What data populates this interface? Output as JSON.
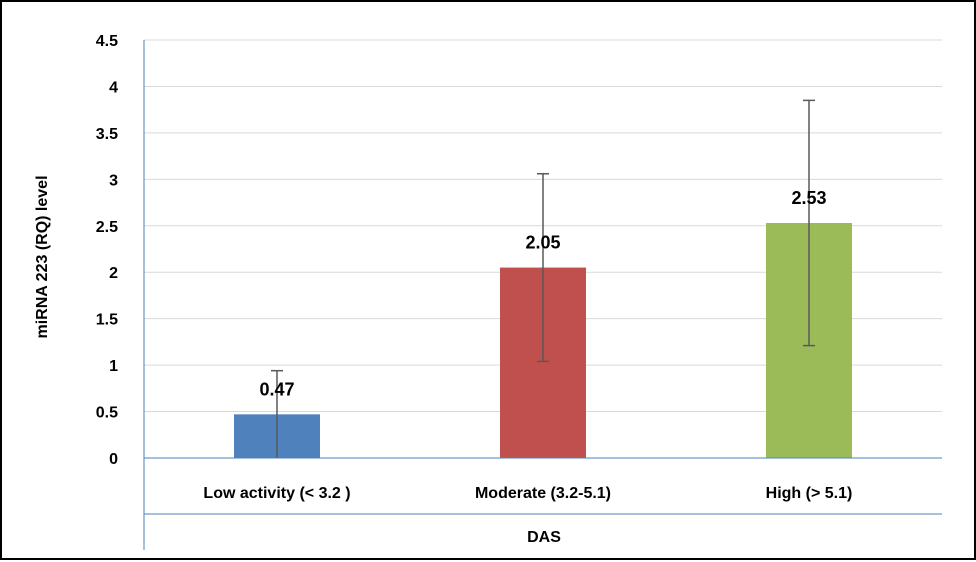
{
  "chart_data": {
    "type": "bar",
    "title": "",
    "xlabel": "DAS",
    "ylabel": "miRNA 223 (RQ) level",
    "categories": [
      "Low activity (< 3.2 )",
      "Moderate (3.2-5.1)",
      "High (> 5.1)"
    ],
    "values": [
      0.47,
      2.05,
      2.53
    ],
    "data_labels": [
      "0.47",
      "2.05",
      "2.53"
    ],
    "error_bars": [
      {
        "low": 0.0,
        "high": 0.94
      },
      {
        "low": 1.04,
        "high": 3.06
      },
      {
        "low": 1.21,
        "high": 3.85
      }
    ],
    "colors": [
      "#4F81BD",
      "#C0504D",
      "#9BBB59"
    ],
    "ylim": [
      0,
      4.5
    ],
    "yticks": [
      0,
      0.5,
      1,
      1.5,
      2,
      2.5,
      3,
      3.5,
      4,
      4.5
    ],
    "ytick_labels": [
      "0",
      "0.5",
      "1",
      "1.5",
      "2",
      "2.5",
      "3",
      "3.5",
      "4",
      "4.5"
    ],
    "grid": true,
    "legend": "none"
  }
}
